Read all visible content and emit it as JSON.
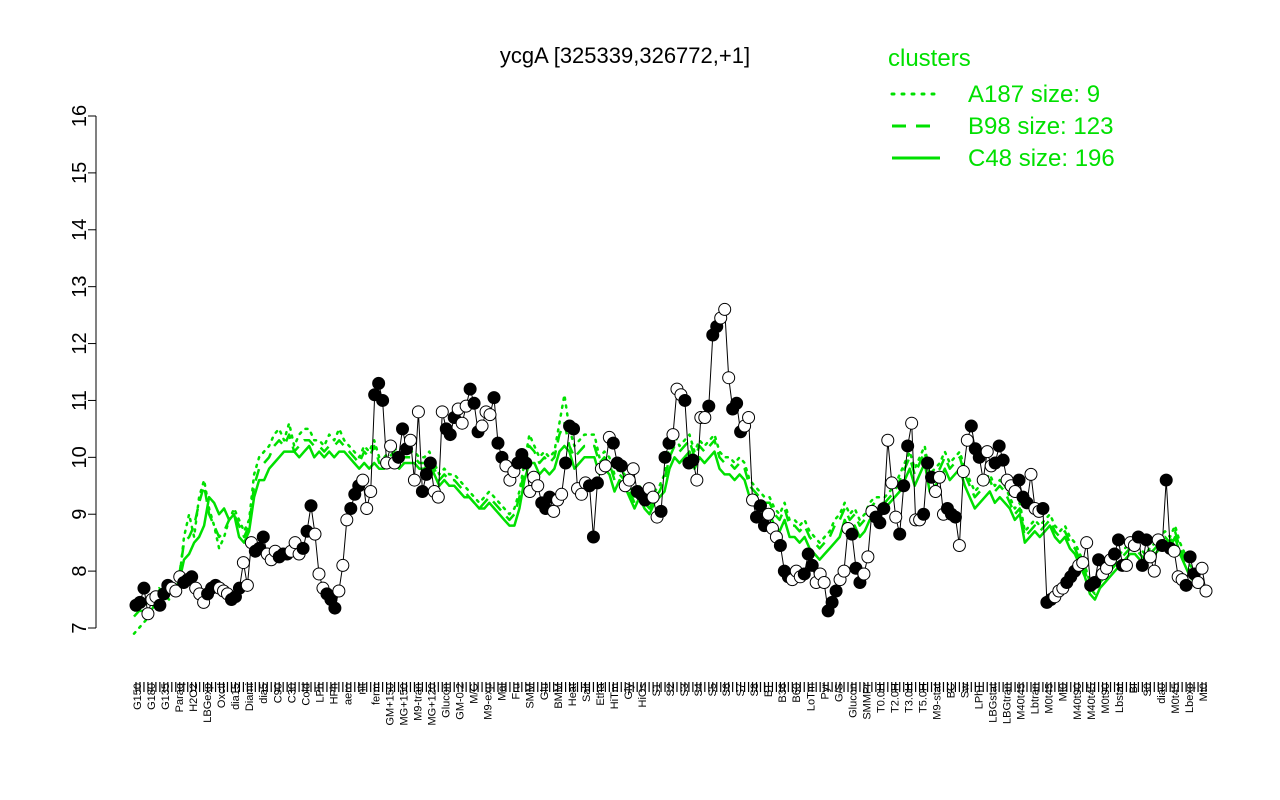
{
  "chart_data": {
    "type": "scatter",
    "title": "ycgA [325339,326772,+1]",
    "xlabel": "",
    "ylabel": "",
    "ylim": [
      7,
      16
    ],
    "yticks": [
      "7",
      "8",
      "9",
      "10",
      "11",
      "12",
      "13",
      "14",
      "15",
      "16"
    ],
    "grid": false,
    "legend": {
      "title": "clusters",
      "placement": "top-right",
      "entries": [
        {
          "label": "A187 size: 9",
          "style": "dotted"
        },
        {
          "label": "B98 size: 123",
          "style": "dashed"
        },
        {
          "label": "C48 size: 196",
          "style": "solid"
        }
      ]
    },
    "x_tick_labels": [
      "G150",
      "G180",
      "G135",
      "Paraq",
      "H2O2",
      "LBGexp",
      "Oxctl",
      "dia15",
      "Diami",
      "dia5",
      "C90",
      "C30",
      "Cold",
      "LPh",
      "HPh",
      "aero",
      "nit",
      "ferm",
      "GM+150",
      "MG+150",
      "M9-tran",
      "MG+120",
      "Glucon",
      "GM-0.2",
      "M/G",
      "M9-exp",
      "Mal",
      "Fru",
      "SMM",
      "Glu",
      "BMM",
      "Heat",
      "Salt",
      "Etha",
      "HiTm",
      "Gly",
      "HiOs",
      "S1",
      "S2",
      "S3",
      "S4",
      "S5",
      "S6",
      "S7",
      "S8",
      "BT",
      "B36",
      "B60",
      "LoTm",
      "Pyr",
      "G/S",
      "Glucon",
      "SMMPr",
      "T0.0H",
      "T2.0H",
      "T3.0H",
      "T5.0H",
      "M9-stat",
      "BC",
      "Sw",
      "LPhT",
      "LBGstat",
      "LBGtran",
      "M40t45",
      "Lbtran",
      "M0t45",
      "Mt0",
      "M40t90",
      "M40t45",
      "M0t90",
      "Lbstat",
      "BI",
      "S0",
      "dia0",
      "M0t45",
      "Lbexp",
      "Mt0"
    ],
    "series": [
      {
        "style": "solid",
        "color": "#00e000",
        "values": [
          7.3,
          7.35,
          7.4,
          7.5,
          7.6,
          7.65,
          7.7,
          7.7,
          7.7,
          7.8,
          8.2,
          8.3,
          8.5,
          8.6,
          8.8,
          9.3,
          9.2,
          9.0,
          9.1,
          8.9,
          9.0,
          8.6,
          8.5,
          8.7,
          9.3,
          9.6,
          9.6,
          9.8,
          9.9,
          10.0,
          10.1,
          10.1,
          10.1,
          10.0,
          10.1,
          10.2,
          10.0,
          10.1,
          10.0,
          10.1,
          10.0,
          10.1,
          10.1,
          10.0,
          9.9,
          9.8,
          9.9,
          9.8,
          9.9,
          9.8,
          9.8,
          9.9,
          9.9,
          9.8,
          9.9,
          9.9,
          9.9,
          9.8,
          9.8,
          9.9,
          9.7,
          9.5,
          9.6,
          9.5,
          9.5,
          9.4,
          9.3,
          9.3,
          9.2,
          9.1,
          9.1,
          9.2,
          9.1,
          9.0,
          8.9,
          8.8,
          8.8,
          9.1,
          9.6,
          9.9,
          9.9,
          9.7,
          9.8,
          9.7,
          9.8,
          10.1,
          10.2,
          10.1,
          9.8,
          9.9,
          10.0,
          10.0,
          10.0,
          9.7,
          9.8,
          9.7,
          9.4,
          9.6,
          9.5,
          9.3,
          9.1,
          9.3,
          9.1,
          9.0,
          9.2,
          9.3,
          9.4,
          9.8,
          10.0,
          9.9,
          10.0,
          10.1,
          9.8,
          10.0,
          9.9,
          10.0,
          10.1,
          9.8,
          9.7,
          9.7,
          9.6,
          9.7,
          9.6,
          9.3,
          9.2,
          9.1,
          9.0,
          9.0,
          8.8,
          8.7,
          8.9,
          8.6,
          8.6,
          8.5,
          8.6,
          8.4,
          8.3,
          8.2,
          8.3,
          8.4,
          8.5,
          8.6,
          8.9,
          8.7,
          8.8,
          8.6,
          8.7,
          8.9,
          9.0,
          9.1,
          9.1,
          9.2,
          9.3,
          9.4,
          9.6,
          9.8,
          9.5,
          9.7,
          9.9,
          9.4,
          9.5,
          9.6,
          9.8,
          9.6,
          9.7,
          9.8,
          9.5,
          9.3,
          9.1,
          9.2,
          9.3,
          9.4,
          9.2,
          9.3,
          9.2,
          9.1,
          8.9,
          9.0,
          8.5,
          8.6,
          8.7,
          8.6,
          8.7,
          8.8,
          8.6,
          8.5,
          8.6,
          8.4,
          8.3,
          8.1,
          7.9,
          7.6,
          7.5,
          7.7,
          7.8,
          7.9,
          8.0,
          8.1,
          8.2,
          8.3,
          8.3,
          8.2,
          8.1,
          8.2,
          8.3,
          8.4,
          8.5,
          8.4,
          8.6,
          8.3,
          8.1,
          7.9,
          7.8,
          7.7
        ]
      },
      {
        "style": "dashed",
        "color": "#00e000",
        "values": [
          7.2,
          7.3,
          7.3,
          7.5,
          7.6,
          7.7,
          7.6,
          7.8,
          7.7,
          7.9,
          8.5,
          8.6,
          8.8,
          9.2,
          9.5,
          9.0,
          8.8,
          8.6,
          8.7,
          8.9,
          9.0,
          8.8,
          8.6,
          8.8,
          9.5,
          9.8,
          9.9,
          10.0,
          10.2,
          10.3,
          10.2,
          10.4,
          10.1,
          10.2,
          10.3,
          10.3,
          10.2,
          10.2,
          10.1,
          10.2,
          10.2,
          10.3,
          10.2,
          10.1,
          10.0,
          9.9,
          10.1,
          10.0,
          10.2,
          9.9,
          9.9,
          10.0,
          10.1,
          9.9,
          10.0,
          10.0,
          10.0,
          9.9,
          9.9,
          10.0,
          9.8,
          9.6,
          9.7,
          9.6,
          9.6,
          9.5,
          9.4,
          9.3,
          9.2,
          9.1,
          9.2,
          9.3,
          9.2,
          9.1,
          9.0,
          8.9,
          9.0,
          9.3,
          9.8,
          10.2,
          10.1,
          9.9,
          10.0,
          9.9,
          10.0,
          10.4,
          10.6,
          10.2,
          10.0,
          10.1,
          10.2,
          10.2,
          10.2,
          9.9,
          10.0,
          9.9,
          9.6,
          9.7,
          9.6,
          9.4,
          9.2,
          9.4,
          9.2,
          9.1,
          9.3,
          9.4,
          9.6,
          10.0,
          10.2,
          10.1,
          10.2,
          10.3,
          10.0,
          10.2,
          10.1,
          10.2,
          10.3,
          10.0,
          9.9,
          9.9,
          9.8,
          9.9,
          9.8,
          9.5,
          9.4,
          9.3,
          9.2,
          9.2,
          9.0,
          8.9,
          9.1,
          8.8,
          8.8,
          8.7,
          8.8,
          8.6,
          8.5,
          8.4,
          8.5,
          8.6,
          8.8,
          8.9,
          9.1,
          8.9,
          9.0,
          8.8,
          8.9,
          9.1,
          9.2,
          9.2,
          9.2,
          9.3,
          9.4,
          9.6,
          9.8,
          10.0,
          9.7,
          9.9,
          10.1,
          9.6,
          9.7,
          9.8,
          10.0,
          9.8,
          9.9,
          10.0,
          9.7,
          9.5,
          9.3,
          9.4,
          9.5,
          9.6,
          9.4,
          9.5,
          9.4,
          9.2,
          9.0,
          9.1,
          8.6,
          8.7,
          8.8,
          8.7,
          8.8,
          8.9,
          8.7,
          8.6,
          8.7,
          8.5,
          8.4,
          8.2,
          8.0,
          7.7,
          7.6,
          7.8,
          7.9,
          8.0,
          8.1,
          8.2,
          8.3,
          8.4,
          8.4,
          8.3,
          8.2,
          8.3,
          8.4,
          8.5,
          8.6,
          8.5,
          8.7,
          8.4,
          8.2,
          8.0,
          7.9,
          7.7
        ]
      },
      {
        "style": "dotted",
        "color": "#00e000",
        "values": [
          6.9,
          7.0,
          7.1,
          7.2,
          7.4,
          7.5,
          7.6,
          7.5,
          7.7,
          7.8,
          8.6,
          9.0,
          8.6,
          9.3,
          9.6,
          9.1,
          8.8,
          8.4,
          8.6,
          8.9,
          9.1,
          8.9,
          8.7,
          8.9,
          9.7,
          10.0,
          10.1,
          10.2,
          10.4,
          10.5,
          10.3,
          10.6,
          10.2,
          10.4,
          10.5,
          10.5,
          10.3,
          10.3,
          10.2,
          10.4,
          10.3,
          10.5,
          10.3,
          10.2,
          10.1,
          10.0,
          10.2,
          10.1,
          10.3,
          10.0,
          10.0,
          10.1,
          10.2,
          10.0,
          10.1,
          10.1,
          10.1,
          10.0,
          10.0,
          10.1,
          9.9,
          9.7,
          9.8,
          9.7,
          9.7,
          9.6,
          9.5,
          9.4,
          9.3,
          9.2,
          9.3,
          9.4,
          9.3,
          9.2,
          9.1,
          9.0,
          9.1,
          9.4,
          9.9,
          10.4,
          10.2,
          10.0,
          10.1,
          10.0,
          10.1,
          10.6,
          11.1,
          10.5,
          10.2,
          10.3,
          10.4,
          10.4,
          10.4,
          10.0,
          10.1,
          10.0,
          9.7,
          9.8,
          9.7,
          9.5,
          9.3,
          9.5,
          9.3,
          9.2,
          9.4,
          9.5,
          9.7,
          10.2,
          10.4,
          10.2,
          10.3,
          10.4,
          10.1,
          10.3,
          10.2,
          10.3,
          10.4,
          10.1,
          10.0,
          10.0,
          9.9,
          10.0,
          9.9,
          9.6,
          9.5,
          9.4,
          9.3,
          9.3,
          9.1,
          9.0,
          9.2,
          8.9,
          8.9,
          8.8,
          8.9,
          8.7,
          8.6,
          8.5,
          8.6,
          8.7,
          8.9,
          9.0,
          9.2,
          9.0,
          9.1,
          8.9,
          9.0,
          9.2,
          9.3,
          9.3,
          9.3,
          9.4,
          9.5,
          9.7,
          9.9,
          10.1,
          9.8,
          10.0,
          10.2,
          9.7,
          9.8,
          9.9,
          10.1,
          9.9,
          10.0,
          10.1,
          9.8,
          9.6,
          9.4,
          9.5,
          9.6,
          9.7,
          9.5,
          9.6,
          9.5,
          9.3,
          9.1,
          9.2,
          8.7,
          8.8,
          8.9,
          8.8,
          8.9,
          9.0,
          8.8,
          8.7,
          8.8,
          8.6,
          8.5,
          8.3,
          8.1,
          7.8,
          7.7,
          7.9,
          8.0,
          8.1,
          8.2,
          8.3,
          8.4,
          8.5,
          8.5,
          8.4,
          8.3,
          8.4,
          8.5,
          8.6,
          8.7,
          8.6,
          8.8,
          8.5,
          8.3,
          8.1,
          8.0,
          7.8
        ]
      }
    ],
    "points": [
      7.4,
      7.45,
      7.7,
      7.25,
      7.5,
      7.55,
      7.4,
      7.6,
      7.75,
      7.7,
      7.65,
      7.9,
      7.8,
      7.85,
      7.9,
      7.7,
      7.6,
      7.45,
      7.6,
      7.7,
      7.75,
      7.7,
      7.65,
      7.6,
      7.5,
      7.55,
      7.7,
      8.15,
      7.75,
      8.5,
      8.35,
      8.4,
      8.6,
      8.3,
      8.2,
      8.35,
      8.25,
      8.3,
      8.3,
      8.35,
      8.5,
      8.3,
      8.4,
      8.7,
      9.15,
      8.65,
      7.95,
      7.7,
      7.6,
      7.5,
      7.35,
      7.65,
      8.1,
      8.9,
      9.1,
      9.35,
      9.5,
      9.6,
      9.1,
      9.4,
      11.1,
      11.3,
      11.0,
      9.9,
      10.2,
      9.9,
      10.0,
      10.5,
      10.15,
      10.3,
      9.6,
      10.8,
      9.4,
      9.7,
      9.9,
      9.4,
      9.3,
      10.8,
      10.5,
      10.4,
      10.7,
      10.85,
      10.6,
      10.9,
      11.2,
      10.95,
      10.45,
      10.55,
      10.8,
      10.75,
      11.05,
      10.25,
      10.0,
      9.85,
      9.6,
      9.75,
      9.9,
      10.05,
      9.9,
      9.4,
      9.65,
      9.5,
      9.2,
      9.1,
      9.3,
      9.05,
      9.25,
      9.35,
      9.9,
      10.55,
      10.5,
      9.45,
      9.35,
      9.55,
      9.5,
      8.6,
      9.55,
      9.8,
      9.85,
      10.35,
      10.25,
      9.9,
      9.85,
      9.5,
      9.6,
      9.8,
      9.4,
      9.35,
      9.25,
      9.45,
      9.3,
      8.95,
      9.05,
      10.0,
      10.25,
      10.4,
      11.2,
      11.1,
      11.0,
      9.9,
      9.95,
      9.6,
      10.7,
      10.7,
      10.9,
      12.15,
      12.3,
      12.45,
      12.6,
      11.4,
      10.85,
      10.95,
      10.45,
      10.55,
      10.7,
      9.25,
      8.95,
      9.15,
      8.8,
      9.0,
      8.75,
      8.6,
      8.45,
      8.0,
      7.9,
      7.85,
      8.0,
      7.9,
      7.95,
      8.3,
      8.1,
      7.8,
      7.95,
      7.8,
      7.3,
      7.45,
      7.65,
      7.85,
      8.0,
      8.75,
      8.65,
      8.05,
      7.8,
      7.95,
      8.25,
      9.05,
      8.95,
      8.85,
      9.1,
      10.3,
      9.55,
      8.95,
      8.65,
      9.5,
      10.2,
      10.6,
      8.9,
      8.9,
      9.0,
      9.9,
      9.65,
      9.4,
      9.65,
      9.0,
      9.1,
      9.0,
      8.95,
      8.45,
      9.75,
      10.3,
      10.55,
      10.15,
      10.0,
      9.6,
      10.1,
      9.85,
      9.9,
      10.2,
      9.95,
      9.6,
      9.5,
      9.4,
      9.6,
      9.3,
      9.2,
      9.7,
      9.1,
      9.05,
      9.1,
      7.45,
      7.5,
      7.55,
      7.65,
      7.7,
      7.8,
      7.9,
      8.0,
      8.1,
      8.15,
      8.5,
      7.75,
      7.8,
      8.2,
      7.95,
      8.05,
      8.2,
      8.3,
      8.55,
      8.1,
      8.1,
      8.5,
      8.45,
      8.6,
      8.1,
      8.55,
      8.25,
      8.0,
      8.55,
      8.45,
      9.6,
      8.4,
      8.35,
      7.9,
      7.85,
      7.75,
      8.25,
      7.95,
      7.8,
      8.05,
      7.65
    ]
  }
}
